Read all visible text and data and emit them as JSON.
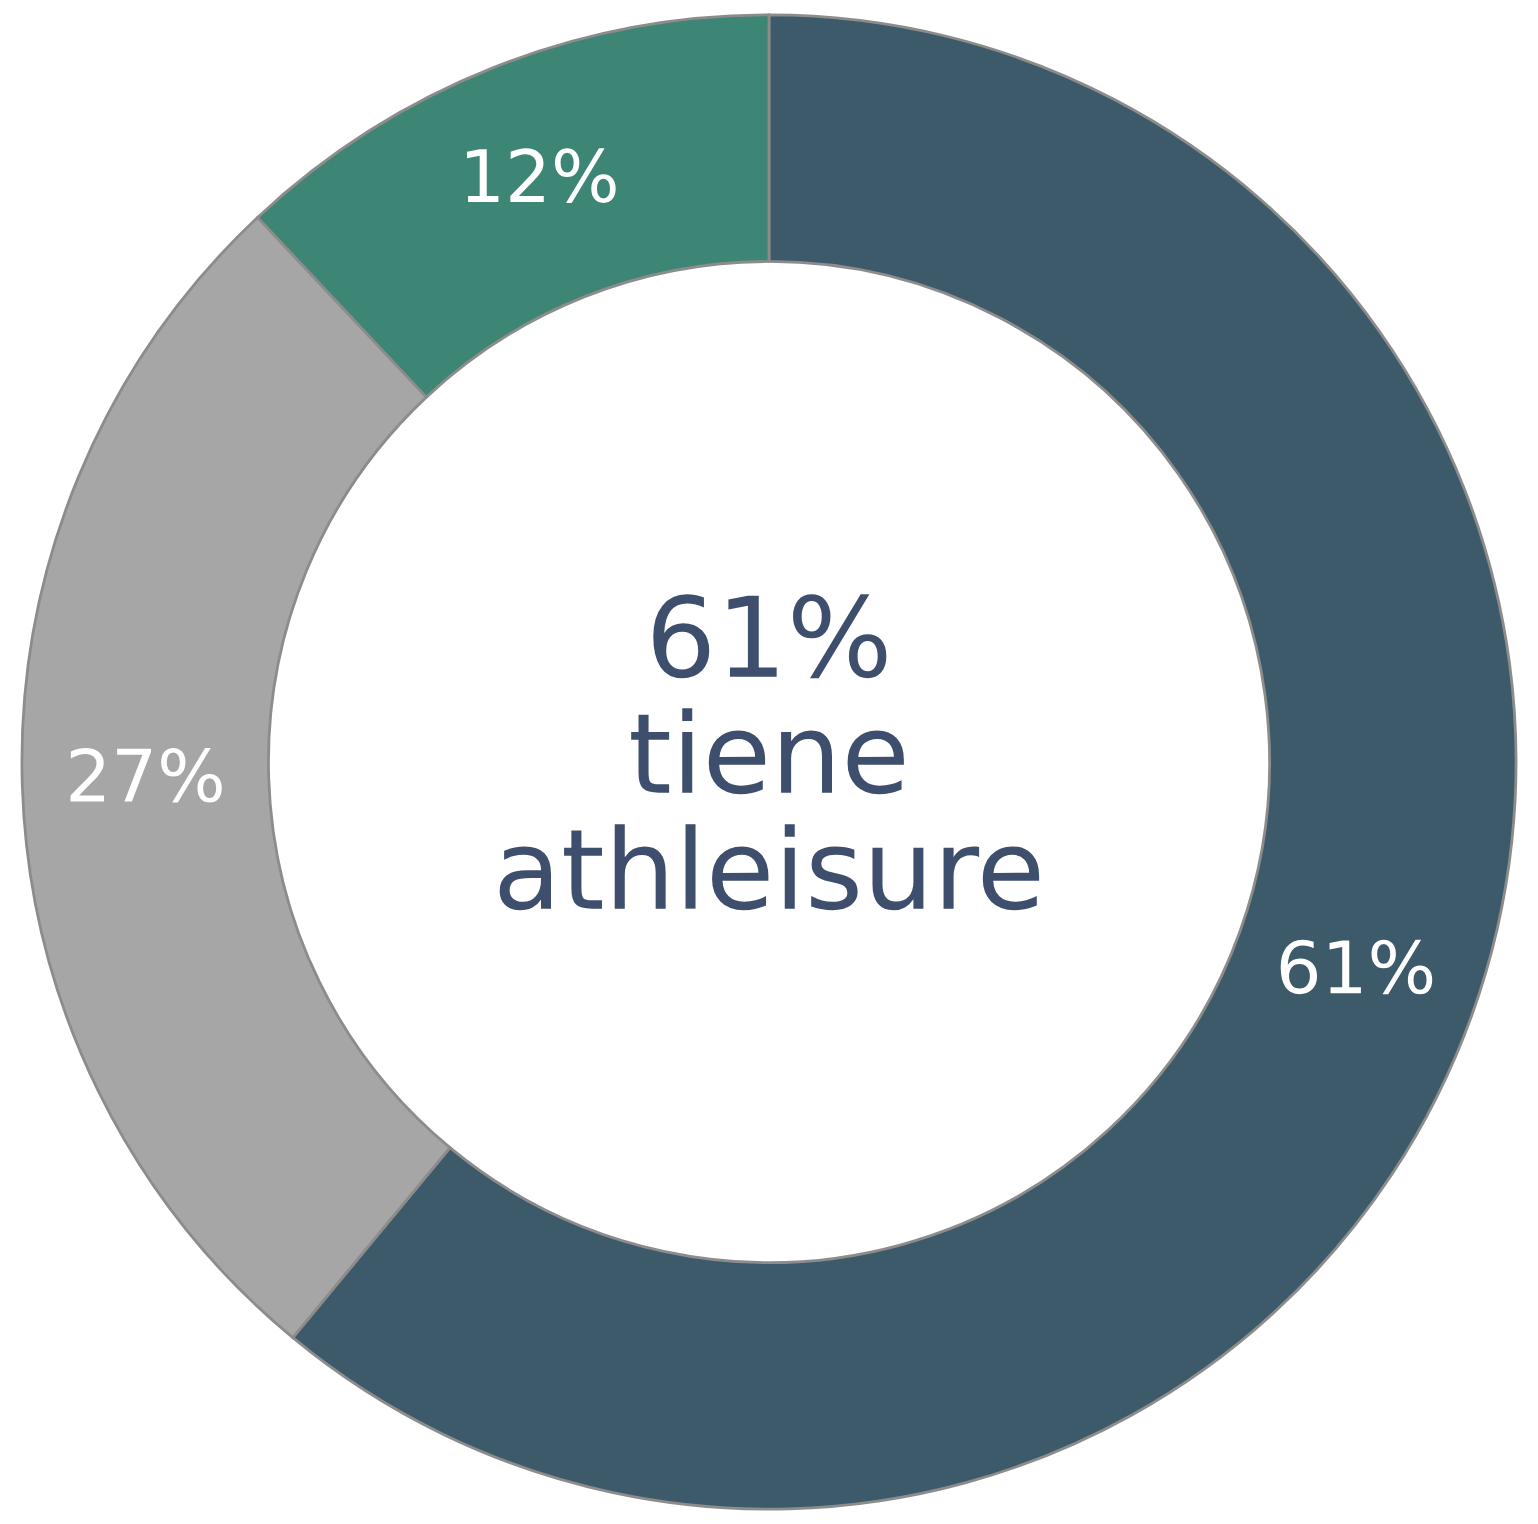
{
  "chart_data": {
    "type": "donut",
    "categories": [
      null,
      null,
      null
    ],
    "values": [
      61,
      27,
      12
    ],
    "colors": [
      "#3d5a6b",
      "#a6a6a6",
      "#3d8574"
    ],
    "value_labels": [
      "61%",
      "27%",
      "12%"
    ],
    "annotations": [
      "61%\ntiene\nathleisure"
    ]
  }
}
